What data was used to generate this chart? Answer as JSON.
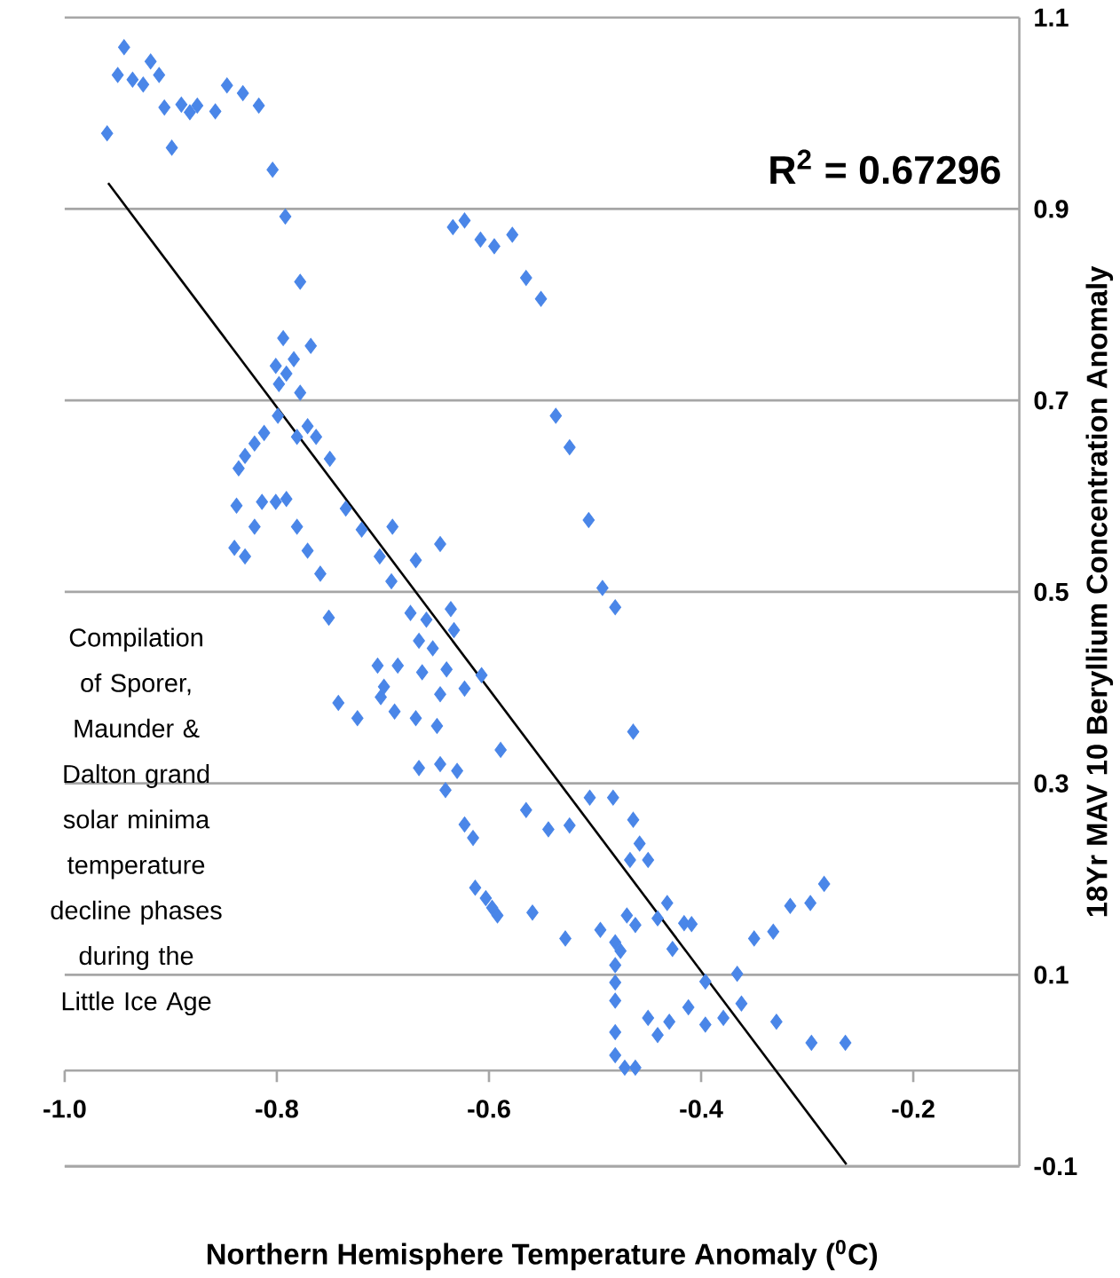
{
  "chart_data": {
    "type": "scatter",
    "xlabel": "Northern Hemisphere Temperature Anomaly ($^{0}$C)",
    "ylabel": "18Yr MAV 10 Beryllium Concentration Anomaly",
    "annotations": [
      "R$^{2}$ = 0.67296",
      "Compilation of Sporer, Maunder & Dalton grand solar minima temperature decline phases during the Little Ice Age"
    ],
    "xlim": [
      -1.0,
      -0.1
    ],
    "xticks": [
      {
        "value": -1.0,
        "label": "-1.0"
      },
      -0.8,
      -0.6,
      -0.4,
      -0.2
    ],
    "ylim": [
      -0.1,
      1.1
    ],
    "yticks": [
      -0.1,
      0.1,
      0.3,
      0.5,
      0.7,
      0.9,
      1.1
    ],
    "grid": "y",
    "marker": "diamond",
    "series": [
      {
        "color": "#4a86e8",
        "x": [
          -0.944,
          -0.95,
          -0.936,
          -0.926,
          -0.919,
          -0.911,
          -0.906,
          -0.96,
          -0.899,
          -0.89,
          -0.882,
          -0.875,
          -0.858,
          -0.847,
          -0.832,
          -0.817,
          -0.804,
          -0.792,
          -0.778,
          -0.794,
          -0.768,
          -0.784,
          -0.801,
          -0.791,
          -0.798,
          -0.778,
          -0.799,
          -0.771,
          -0.781,
          -0.763,
          -0.75,
          -0.812,
          -0.821,
          -0.83,
          -0.836,
          -0.838,
          -0.814,
          -0.801,
          -0.791,
          -0.821,
          -0.781,
          -0.735,
          -0.72,
          -0.691,
          -0.84,
          -0.83,
          -0.771,
          -0.759,
          -0.703,
          -0.692,
          -0.669,
          -0.646,
          -0.634,
          -0.623,
          -0.608,
          -0.595,
          -0.578,
          -0.565,
          -0.551,
          -0.537,
          -0.524,
          -0.506,
          -0.493,
          -0.481,
          -0.751,
          -0.636,
          -0.674,
          -0.659,
          -0.666,
          -0.653,
          -0.633,
          -0.705,
          -0.686,
          -0.663,
          -0.64,
          -0.607,
          -0.623,
          -0.699,
          -0.646,
          -0.742,
          -0.724,
          -0.689,
          -0.669,
          -0.649,
          -0.702,
          -0.464,
          -0.589,
          -0.666,
          -0.646,
          -0.63,
          -0.641,
          -0.505,
          -0.483,
          -0.565,
          -0.544,
          -0.524,
          -0.623,
          -0.615,
          -0.464,
          -0.458,
          -0.467,
          -0.45,
          -0.613,
          -0.603,
          -0.597,
          -0.592,
          -0.559,
          -0.528,
          -0.495,
          -0.47,
          -0.462,
          -0.481,
          -0.476,
          -0.481,
          -0.481,
          -0.481,
          -0.432,
          -0.441,
          -0.416,
          -0.409,
          -0.427,
          -0.396,
          -0.366,
          -0.35,
          -0.332,
          -0.316,
          -0.297,
          -0.284,
          -0.362,
          -0.379,
          -0.396,
          -0.412,
          -0.43,
          -0.45,
          -0.441,
          -0.329,
          -0.296,
          -0.264,
          -0.481,
          -0.481,
          -0.472,
          -0.462
        ],
        "values": [
          1.069,
          1.04,
          1.035,
          1.03,
          1.054,
          1.04,
          1.006,
          0.979,
          0.964,
          1.009,
          1.001,
          1.008,
          1.002,
          1.029,
          1.021,
          1.008,
          0.941,
          0.892,
          0.824,
          0.765,
          0.757,
          0.743,
          0.736,
          0.728,
          0.717,
          0.708,
          0.684,
          0.673,
          0.662,
          0.662,
          0.639,
          0.666,
          0.655,
          0.642,
          0.629,
          0.59,
          0.594,
          0.594,
          0.597,
          0.568,
          0.568,
          0.587,
          0.565,
          0.568,
          0.546,
          0.537,
          0.543,
          0.519,
          0.537,
          0.511,
          0.533,
          0.55,
          0.881,
          0.888,
          0.868,
          0.861,
          0.873,
          0.828,
          0.806,
          0.684,
          0.651,
          0.575,
          0.504,
          0.484,
          0.473,
          0.482,
          0.478,
          0.471,
          0.449,
          0.441,
          0.46,
          0.423,
          0.423,
          0.416,
          0.419,
          0.413,
          0.399,
          0.401,
          0.393,
          0.384,
          0.368,
          0.375,
          0.368,
          0.36,
          0.39,
          0.354,
          0.335,
          0.316,
          0.32,
          0.313,
          0.293,
          0.285,
          0.285,
          0.272,
          0.252,
          0.256,
          0.257,
          0.243,
          0.262,
          0.237,
          0.22,
          0.22,
          0.191,
          0.18,
          0.17,
          0.162,
          0.165,
          0.138,
          0.147,
          0.162,
          0.152,
          0.134,
          0.125,
          0.11,
          0.092,
          0.073,
          0.175,
          0.159,
          0.154,
          0.153,
          0.127,
          0.093,
          0.101,
          0.138,
          0.145,
          0.172,
          0.175,
          0.195,
          0.07,
          0.055,
          0.048,
          0.066,
          0.051,
          0.055,
          0.037,
          0.051,
          0.029,
          0.029,
          0.04,
          0.016,
          0.003,
          0.003
        ]
      },
      {
        "type": "line",
        "color": "#000000",
        "marker": "none",
        "x": [
          -0.959,
          -0.263
        ],
        "values": [
          0.927,
          -0.098
        ]
      }
    ]
  }
}
